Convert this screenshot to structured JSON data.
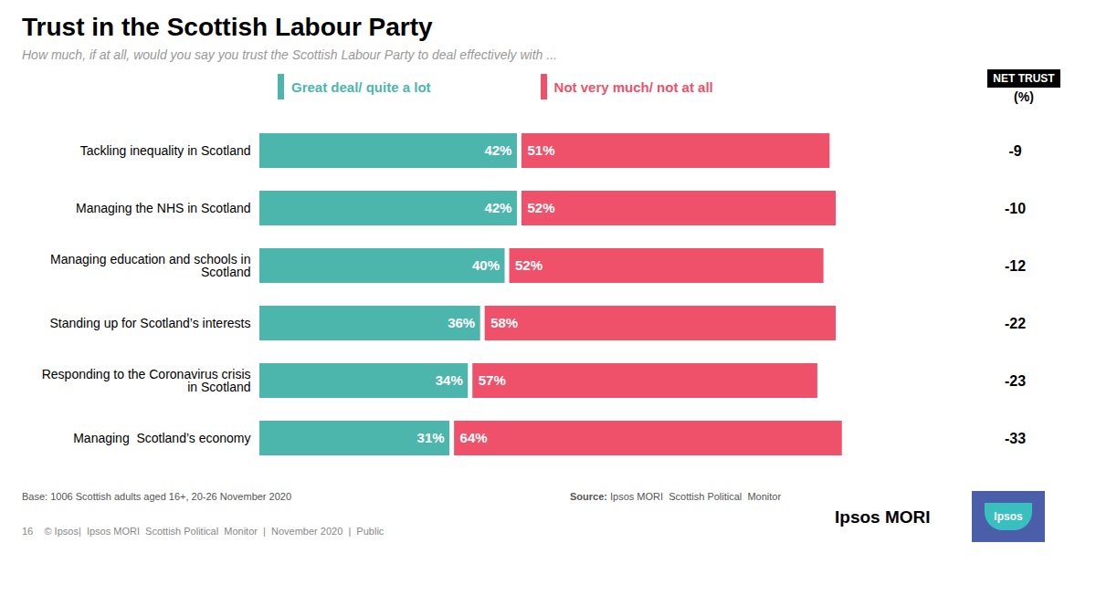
{
  "chart_data": {
    "type": "bar",
    "orientation": "horizontal",
    "stacked": true,
    "title": "Trust in the Scottish Labour Party",
    "subtitle": "How much, if at all, would you say you trust the Scottish Labour Party to deal effectively with ...",
    "categories": [
      "Tackling inequality in Scotland",
      "Managing the NHS in Scotland",
      "Managing education and schools in\nScotland",
      "Standing up for Scotland’s interests",
      "Responding to the Coronavirus crisis\nin Scotland",
      "Managing  Scotland’s economy"
    ],
    "series": [
      {
        "name": "Great deal/ quite a lot",
        "color": "#4DB6AC",
        "values": [
          42,
          42,
          40,
          36,
          34,
          31
        ],
        "value_labels": [
          "42%",
          "42%",
          "40%",
          "36%",
          "34%",
          "31%"
        ]
      },
      {
        "name": "Not very much/ not at all",
        "color": "#F0516A",
        "values": [
          51,
          52,
          52,
          58,
          57,
          64
        ],
        "value_labels": [
          "51%",
          "52%",
          "52%",
          "58%",
          "57%",
          "64%"
        ]
      }
    ],
    "data_labels": true,
    "xlim": [
      0,
      115
    ],
    "tick_labels": "y",
    "grid": false,
    "legend": "top",
    "net_trust": {
      "label": "NET TRUST",
      "unit": "(%)",
      "values": [
        -9,
        -10,
        -12,
        -22,
        -23,
        -33
      ]
    },
    "annotations": {
      "base": "Base: 1006 Scottish adults aged 16+, 20-26 November 2020",
      "source": "Source: Ipsos MORI  Scottish Political  Monitor",
      "footer": "16    © Ipsos|  Ipsos MORI  Scottish Political  Monitor  |  November 2020  |  Public",
      "brand": "Ipsos MORI",
      "logo": "Ipsos"
    }
  }
}
